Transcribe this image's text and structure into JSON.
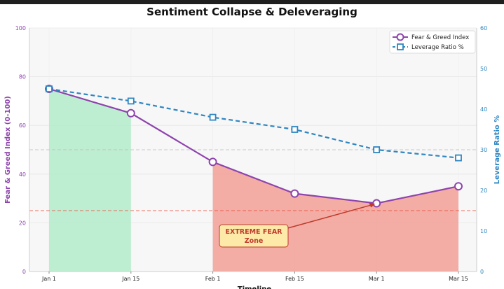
{
  "chart_data": {
    "type": "line",
    "title": "Sentiment Collapse & Deleveraging",
    "xlabel": "Timeline",
    "ylabel": "Fear & Greed Index (0-100)",
    "y2label": "Leverage Ratio %",
    "categories": [
      "Jan 1",
      "Jan 15",
      "Feb 1",
      "Feb 15",
      "Mar 1",
      "Mar 15"
    ],
    "ylim": [
      0,
      100
    ],
    "y2lim": [
      0,
      60
    ],
    "yticks": [
      0,
      20,
      40,
      60,
      80,
      100
    ],
    "y2ticks": [
      0,
      10,
      20,
      30,
      40,
      50,
      60
    ],
    "series": [
      {
        "name": "Fear & Greed Index",
        "axis": "left",
        "color": "#8e44ad",
        "style": "solid",
        "marker": "circle",
        "values": [
          75,
          65,
          45,
          32,
          28,
          35
        ]
      },
      {
        "name": "Leverage Ratio %",
        "axis": "right",
        "color": "#2e86c1",
        "style": "dashed",
        "marker": "square",
        "values": [
          45,
          42,
          38,
          35,
          30,
          28
        ]
      }
    ],
    "reference_lines": [
      {
        "axis": "left",
        "value": 25,
        "color": "#e74c3c",
        "style": "dashed"
      },
      {
        "axis": "left",
        "value": 50,
        "color": "#bbbbbb",
        "style": "dashed"
      }
    ],
    "shaded_regions": [
      {
        "label": "greed",
        "from": "Jan 1",
        "to": "Jan 15",
        "color": "#abebc6"
      },
      {
        "label": "fear",
        "from": "Feb 1",
        "to": "Mar 15",
        "color": "#f1948a"
      }
    ],
    "annotation": {
      "text_line1": "EXTREME FEAR",
      "text_line2": "Zone",
      "points_to": "Mar 1",
      "color": "#c0392b",
      "box_color": "#fdeaa8"
    },
    "legend_position": "top-right",
    "grid": true
  }
}
